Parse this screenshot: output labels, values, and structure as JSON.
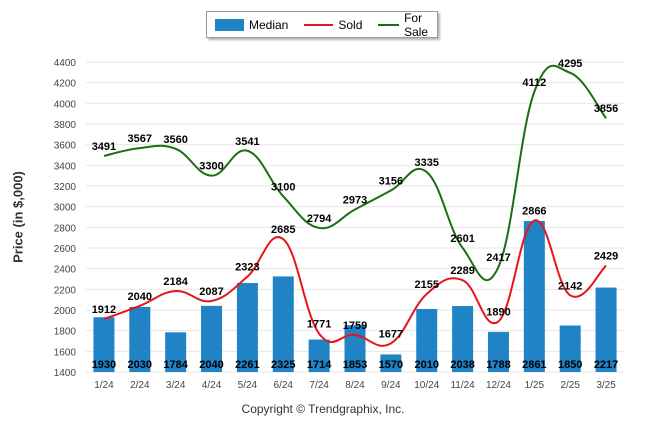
{
  "legend": {
    "median": "Median",
    "sold": "Sold",
    "for_sale": "For Sale"
  },
  "yaxis_title": "Price (in $,000)",
  "credit": "Copyright © Trendgraphix, Inc.",
  "colors": {
    "median": "#1f83c6",
    "sold": "#e8141b",
    "for_sale": "#1b6e12",
    "grid": "#e6e6e6"
  },
  "chart_data": {
    "type": "bar",
    "categories": [
      "1/24",
      "2/24",
      "3/24",
      "4/24",
      "5/24",
      "6/24",
      "7/24",
      "8/24",
      "9/24",
      "10/24",
      "11/24",
      "12/24",
      "1/25",
      "2/25",
      "3/25"
    ],
    "ylim": [
      1400,
      4400
    ],
    "yticks": [
      1400,
      1600,
      1800,
      2000,
      2200,
      2400,
      2600,
      2800,
      3000,
      3200,
      3400,
      3600,
      3800,
      4000,
      4200,
      4400
    ],
    "ylabel": "Price (in $,000)",
    "grid": true,
    "legend_position": "top",
    "series": [
      {
        "name": "Median",
        "kind": "bar",
        "values": [
          1930,
          2030,
          1784,
          2040,
          2261,
          2325,
          1714,
          1853,
          1570,
          2010,
          2038,
          1788,
          2861,
          1850,
          2217
        ]
      },
      {
        "name": "Sold",
        "kind": "line",
        "values": [
          1912,
          2040,
          2184,
          2087,
          2323,
          2685,
          1771,
          1759,
          1677,
          2155,
          2289,
          1890,
          2866,
          2142,
          2429
        ]
      },
      {
        "name": "For Sale",
        "kind": "line",
        "values": [
          3491,
          3567,
          3560,
          3300,
          3541,
          3100,
          2794,
          2973,
          3156,
          3335,
          2601,
          2417,
          4112,
          4295,
          3856
        ]
      }
    ]
  }
}
